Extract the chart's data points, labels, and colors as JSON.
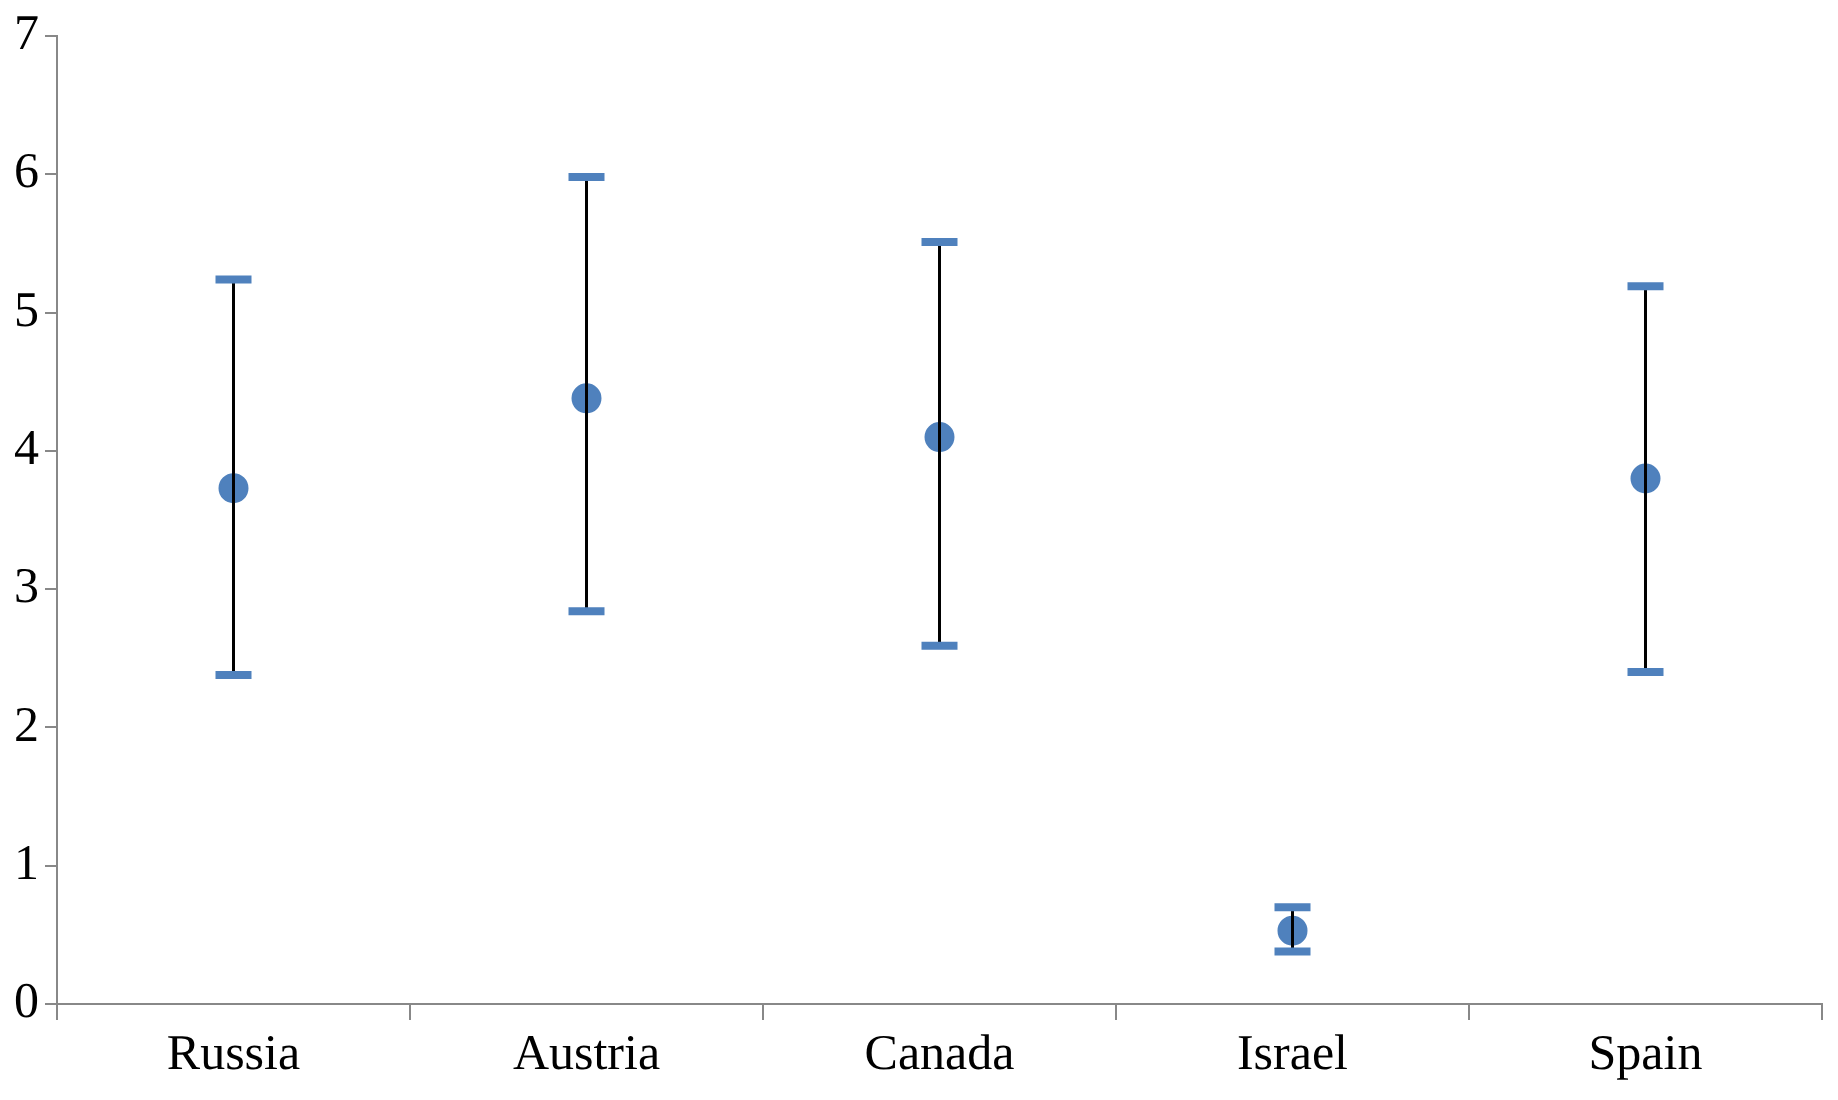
{
  "chart_data": {
    "type": "scatter",
    "categories": [
      "Russia",
      "Austria",
      "Canada",
      "Israel",
      "Spain"
    ],
    "series": [
      {
        "color": "#4f81bd",
        "values": [
          3.73,
          4.38,
          4.1,
          0.53,
          3.8
        ],
        "errors": [
          [
            2.38,
            5.24
          ],
          [
            2.84,
            5.98
          ],
          [
            2.59,
            5.51
          ],
          [
            0.38,
            0.7
          ],
          [
            2.4,
            5.19
          ]
        ]
      }
    ],
    "ylim": [
      0,
      7
    ],
    "yticks": [
      0,
      1,
      2,
      3,
      4,
      5,
      6,
      7
    ],
    "grid": false,
    "legend": false,
    "marker": "circle"
  }
}
